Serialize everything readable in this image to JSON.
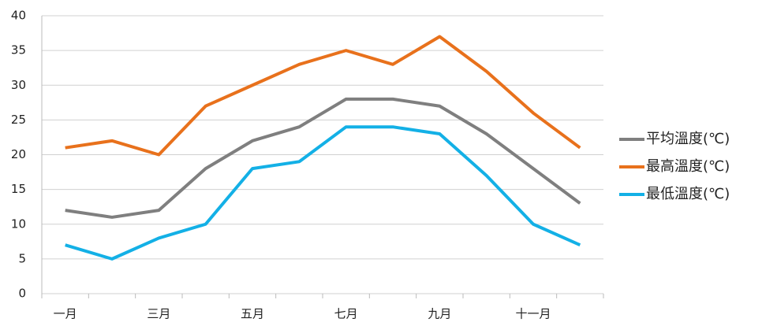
{
  "chart_data": {
    "type": "line",
    "categories": [
      "一月",
      null,
      "三月",
      null,
      "五月",
      null,
      "七月",
      null,
      "九月",
      null,
      "十一月",
      null
    ],
    "series": [
      {
        "name": "平均溫度(℃)",
        "color": "#7f7f7f",
        "values": [
          12,
          11,
          12,
          18,
          22,
          24,
          28,
          28,
          27,
          23,
          18,
          13
        ]
      },
      {
        "name": "最高溫度(℃)",
        "color": "#e8711c",
        "values": [
          21,
          22,
          20,
          27,
          30,
          33,
          35,
          33,
          37,
          32,
          26,
          21
        ]
      },
      {
        "name": "最低溫度(℃)",
        "color": "#13b0e6",
        "values": [
          7,
          5,
          8,
          10,
          18,
          19,
          24,
          24,
          23,
          17,
          10,
          7
        ]
      }
    ],
    "ylim": [
      0,
      40
    ],
    "yticks": [
      0,
      5,
      10,
      15,
      20,
      25,
      30,
      35,
      40
    ],
    "grid": true,
    "legend": "right"
  }
}
